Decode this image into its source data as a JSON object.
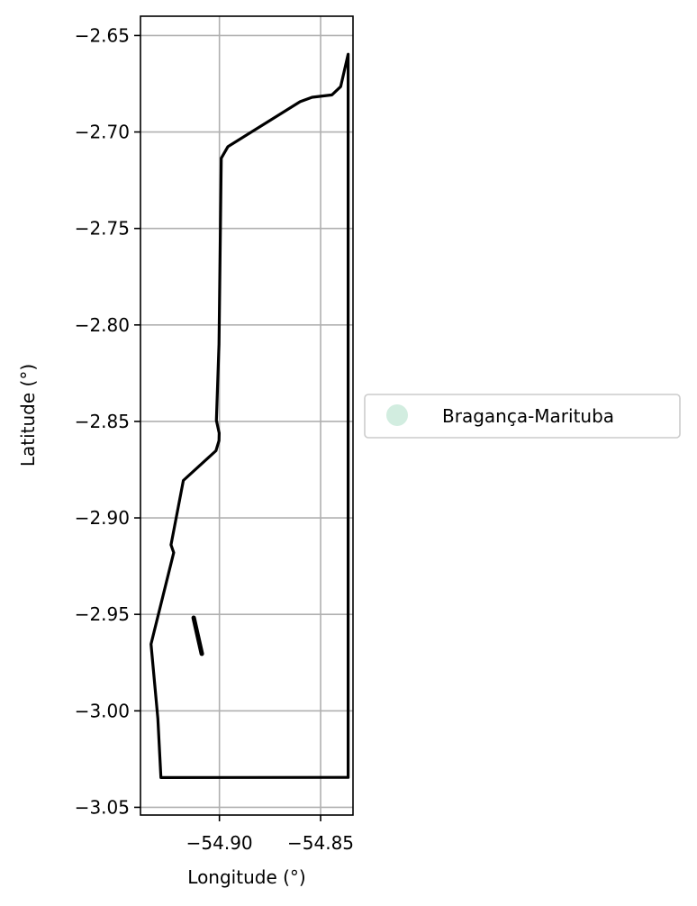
{
  "chart_data": {
    "type": "line",
    "title": "",
    "xlabel": "Longitude (°)",
    "ylabel": "Latitude (°)",
    "xlim": [
      -54.939,
      -54.834
    ],
    "ylim": [
      -3.054,
      -2.64
    ],
    "x_ticks": [
      -54.9,
      -54.85
    ],
    "x_tick_labels": [
      "−54.90",
      "−54.85"
    ],
    "y_ticks": [
      -2.65,
      -2.7,
      -2.75,
      -2.8,
      -2.85,
      -2.9,
      -2.95,
      -3.0,
      -3.05
    ],
    "y_tick_labels": [
      "−2.65",
      "−2.70",
      "−2.75",
      "−2.80",
      "−2.85",
      "−2.90",
      "−2.95",
      "−3.00",
      "−3.05"
    ],
    "grid": true,
    "legend": {
      "placement": "center-right outside",
      "entries": [
        {
          "label": "Bragança-Marituba",
          "color": "#d2ede0",
          "marker": "circle"
        }
      ]
    },
    "series": [
      {
        "color": "#000000",
        "points": [
          [
            -54.9015,
            -2.8495
          ],
          [
            -54.9001,
            -2.856
          ],
          [
            -54.9002,
            -2.86
          ],
          [
            -54.9017,
            -2.8652
          ],
          [
            -54.9178,
            -2.8806
          ],
          [
            -54.9239,
            -2.914
          ],
          [
            -54.9226,
            -2.918
          ],
          [
            -54.9338,
            -2.9654
          ],
          [
            -54.9304,
            -3.004
          ],
          [
            -54.9289,
            -3.0346
          ],
          [
            -54.8364,
            -3.0345
          ],
          [
            -54.8364,
            -2.6597
          ],
          [
            -54.8401,
            -2.6765
          ],
          [
            -54.8444,
            -2.6808
          ],
          [
            -54.8542,
            -2.682
          ],
          [
            -54.8601,
            -2.6843
          ],
          [
            -54.8958,
            -2.7076
          ],
          [
            -54.8991,
            -2.7136
          ],
          [
            -54.9002,
            -2.81
          ],
          [
            -54.9015,
            -2.8495
          ]
        ]
      },
      {
        "color": "#000000",
        "points": [
          [
            -54.9127,
            -2.9518
          ],
          [
            -54.9087,
            -2.9704
          ]
        ]
      }
    ]
  }
}
